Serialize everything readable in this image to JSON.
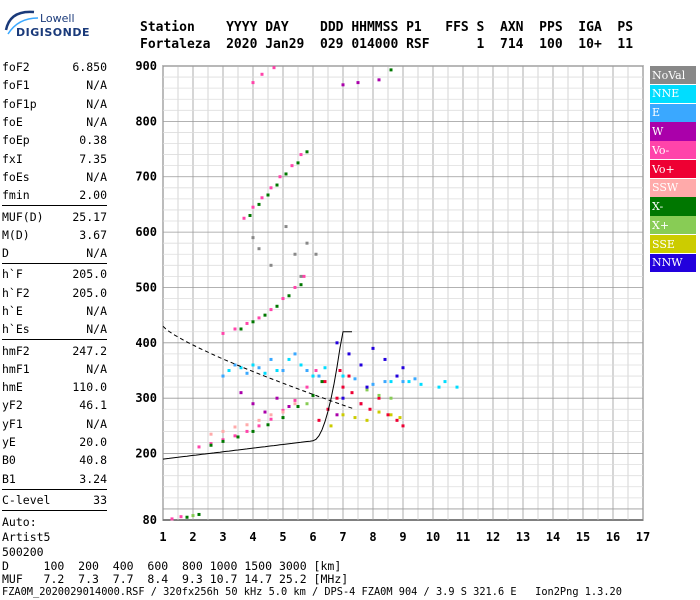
{
  "logo": {
    "line1": "Lowell",
    "line2": "DIGISONDE"
  },
  "header": {
    "line1": "Station    YYYY DAY    DDD HHMMSS P1   FFS S  AXN  PPS  IGA  PS",
    "line2": "Fortaleza  2020 Jan29  029 014000 RSF      1  714  100  10+  11"
  },
  "params": {
    "g1": [
      [
        "foF2",
        "6.850"
      ],
      [
        "foF1",
        "N/A"
      ],
      [
        "foF1p",
        "N/A"
      ],
      [
        "foE",
        "N/A"
      ],
      [
        "foEp",
        "0.38"
      ],
      [
        "fxI",
        "7.35"
      ],
      [
        "foEs",
        "N/A"
      ],
      [
        "fmin",
        "2.00"
      ]
    ],
    "g2": [
      [
        "MUF(D)",
        "25.17"
      ],
      [
        "M(D)",
        "3.67"
      ],
      [
        "D",
        "N/A"
      ]
    ],
    "g3": [
      [
        "h`F",
        "205.0"
      ],
      [
        "h`F2",
        "205.0"
      ],
      [
        "h`E",
        "N/A"
      ],
      [
        "h`Es",
        "N/A"
      ]
    ],
    "g4": [
      [
        "hmF2",
        "247.2"
      ],
      [
        "hmF1",
        "N/A"
      ],
      [
        "hmE",
        "110.0"
      ],
      [
        "yF2",
        "46.1"
      ],
      [
        "yF1",
        "N/A"
      ],
      [
        "yE",
        "20.0"
      ],
      [
        "B0",
        "40.8"
      ],
      [
        "B1",
        "3.24"
      ]
    ],
    "g5": [
      [
        "C-level",
        "33"
      ]
    ]
  },
  "auto": {
    "line1": "Auto:",
    "line2": "Artist5",
    "line3": "500200"
  },
  "legend": [
    {
      "label": "NoVal",
      "color": "#888888"
    },
    {
      "label": "NNE",
      "color": "#00ddff"
    },
    {
      "label": "E",
      "color": "#3aa8ff"
    },
    {
      "label": "W",
      "color": "#aa00aa"
    },
    {
      "label": "Vo-",
      "color": "#ff44aa"
    },
    {
      "label": "Vo+",
      "color": "#ee0033"
    },
    {
      "label": "SSW",
      "color": "#ffaaaa"
    },
    {
      "label": "X-",
      "color": "#007700"
    },
    {
      "label": "X+",
      "color": "#88cc55"
    },
    {
      "label": "SSE",
      "color": "#cccc00"
    },
    {
      "label": "NNW",
      "color": "#2200dd"
    }
  ],
  "bottom": {
    "d_line": "D     100  200  400  600  800 1000 1500 3000 [km]",
    "muf_line": "MUF   7.2  7.3  7.7  8.4  9.3 10.7 14.7 25.2 [MHz]",
    "footer": "FZA0M_2020029014000.RSF / 320fx256h 50 kHz 5.0 km / DPS-4 FZA0M 904 / 3.9 S 321.6 E   Ion2Png 1.3.20"
  },
  "chart_data": {
    "type": "scatter",
    "x_ticks": [
      "1",
      "2",
      "3",
      "4",
      "5",
      "6",
      "7",
      "8",
      "9",
      "10",
      "11",
      "12",
      "13",
      "14",
      "15",
      "16",
      "17"
    ],
    "y_ticks": [
      "200",
      "300",
      "400",
      "500",
      "600",
      "700",
      "800",
      "900"
    ],
    "xlim": [
      1,
      17
    ],
    "ylim": [
      80,
      900
    ],
    "grid": true,
    "legend_position": "right",
    "series": [
      {
        "name": "NoVal",
        "color": "#888888",
        "points": [
          [
            4.2,
            570
          ],
          [
            4.6,
            540
          ],
          [
            5.1,
            610
          ],
          [
            5.4,
            560
          ],
          [
            5.6,
            520
          ],
          [
            4.0,
            590
          ],
          [
            5.8,
            580
          ],
          [
            6.1,
            560
          ]
        ]
      },
      {
        "name": "NNE",
        "color": "#00ddff",
        "points": [
          [
            3.2,
            350
          ],
          [
            3.6,
            355
          ],
          [
            4.0,
            360
          ],
          [
            4.4,
            345
          ],
          [
            4.8,
            350
          ],
          [
            5.2,
            370
          ],
          [
            5.6,
            360
          ],
          [
            6.0,
            340
          ],
          [
            6.4,
            355
          ],
          [
            7.0,
            340
          ],
          [
            8.6,
            330
          ],
          [
            9.2,
            330
          ],
          [
            9.6,
            325
          ],
          [
            10.2,
            320
          ],
          [
            10.4,
            330
          ],
          [
            10.8,
            320
          ]
        ]
      },
      {
        "name": "E",
        "color": "#3aa8ff",
        "points": [
          [
            3.0,
            340
          ],
          [
            3.4,
            360
          ],
          [
            3.8,
            345
          ],
          [
            4.2,
            355
          ],
          [
            4.6,
            370
          ],
          [
            5.0,
            350
          ],
          [
            5.4,
            380
          ],
          [
            5.8,
            350
          ],
          [
            6.2,
            340
          ],
          [
            7.4,
            335
          ],
          [
            8.0,
            325
          ],
          [
            8.4,
            330
          ],
          [
            9.0,
            330
          ],
          [
            9.4,
            335
          ]
        ]
      },
      {
        "name": "W",
        "color": "#aa00aa",
        "points": [
          [
            3.6,
            310
          ],
          [
            4.0,
            290
          ],
          [
            4.4,
            275
          ],
          [
            4.8,
            300
          ],
          [
            5.2,
            285
          ],
          [
            7.0,
            866
          ],
          [
            7.5,
            870
          ],
          [
            8.2,
            875
          ],
          [
            6.8,
            270
          ],
          [
            7.6,
            290
          ]
        ]
      },
      {
        "name": "Vo-",
        "color": "#ff44aa",
        "points": [
          [
            1.3,
            82
          ],
          [
            1.6,
            86
          ],
          [
            2.2,
            212
          ],
          [
            2.6,
            218
          ],
          [
            3.0,
            225
          ],
          [
            3.4,
            232
          ],
          [
            3.8,
            240
          ],
          [
            4.2,
            250
          ],
          [
            4.6,
            262
          ],
          [
            5.0,
            278
          ],
          [
            5.4,
            296
          ],
          [
            5.8,
            320
          ],
          [
            6.1,
            350
          ],
          [
            3.0,
            417
          ],
          [
            3.4,
            425
          ],
          [
            3.8,
            435
          ],
          [
            4.2,
            445
          ],
          [
            4.6,
            460
          ],
          [
            5.0,
            480
          ],
          [
            5.4,
            500
          ],
          [
            5.7,
            520
          ],
          [
            3.7,
            625
          ],
          [
            4.0,
            645
          ],
          [
            4.3,
            662
          ],
          [
            4.6,
            680
          ],
          [
            4.9,
            700
          ],
          [
            5.3,
            720
          ],
          [
            5.6,
            740
          ],
          [
            4.0,
            870
          ],
          [
            4.3,
            885
          ],
          [
            4.7,
            897
          ]
        ]
      },
      {
        "name": "Vo+",
        "color": "#ee0033",
        "points": [
          [
            6.2,
            260
          ],
          [
            6.5,
            280
          ],
          [
            6.8,
            300
          ],
          [
            7.0,
            320
          ],
          [
            7.3,
            310
          ],
          [
            7.6,
            290
          ],
          [
            7.9,
            280
          ],
          [
            8.2,
            300
          ],
          [
            8.5,
            270
          ],
          [
            8.8,
            260
          ],
          [
            9.0,
            250
          ],
          [
            6.4,
            330
          ],
          [
            6.9,
            350
          ],
          [
            7.2,
            340
          ]
        ]
      },
      {
        "name": "SSW",
        "color": "#ffaaaa",
        "points": [
          [
            2.6,
            235
          ],
          [
            3.0,
            240
          ],
          [
            3.4,
            248
          ],
          [
            3.8,
            252
          ],
          [
            4.2,
            260
          ],
          [
            4.6,
            270
          ],
          [
            5.0,
            275
          ],
          [
            5.4,
            290
          ]
        ]
      },
      {
        "name": "X-",
        "color": "#007700",
        "points": [
          [
            1.8,
            85
          ],
          [
            2.2,
            90
          ],
          [
            2.6,
            215
          ],
          [
            3.0,
            222
          ],
          [
            3.5,
            230
          ],
          [
            4.0,
            240
          ],
          [
            4.5,
            252
          ],
          [
            5.0,
            265
          ],
          [
            5.5,
            285
          ],
          [
            6.0,
            305
          ],
          [
            6.3,
            330
          ],
          [
            3.6,
            425
          ],
          [
            4.0,
            438
          ],
          [
            4.4,
            450
          ],
          [
            4.8,
            466
          ],
          [
            5.2,
            485
          ],
          [
            5.6,
            505
          ],
          [
            3.9,
            630
          ],
          [
            4.2,
            650
          ],
          [
            4.5,
            667
          ],
          [
            4.8,
            685
          ],
          [
            5.1,
            705
          ],
          [
            5.5,
            725
          ],
          [
            5.8,
            745
          ],
          [
            8.6,
            893
          ]
        ]
      },
      {
        "name": "X+",
        "color": "#88cc55",
        "points": [
          [
            8.2,
            305
          ],
          [
            8.6,
            300
          ],
          [
            7.8,
            315
          ],
          [
            5.8,
            290
          ],
          [
            2.0,
            88
          ]
        ]
      },
      {
        "name": "SSE",
        "color": "#cccc00",
        "points": [
          [
            7.0,
            270
          ],
          [
            7.4,
            265
          ],
          [
            7.8,
            260
          ],
          [
            8.2,
            275
          ],
          [
            8.6,
            270
          ],
          [
            6.6,
            250
          ],
          [
            8.9,
            265
          ]
        ]
      },
      {
        "name": "NNW",
        "color": "#2200dd",
        "points": [
          [
            6.8,
            400
          ],
          [
            7.2,
            380
          ],
          [
            7.6,
            360
          ],
          [
            8.0,
            390
          ],
          [
            8.4,
            370
          ],
          [
            8.8,
            340
          ],
          [
            9.0,
            355
          ],
          [
            7.0,
            300
          ],
          [
            7.8,
            320
          ]
        ]
      }
    ]
  }
}
